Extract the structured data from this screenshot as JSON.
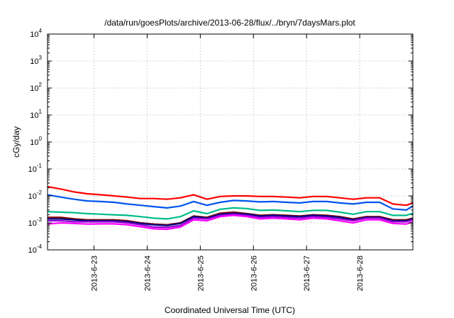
{
  "chart_data": {
    "type": "line",
    "title": "/data/run/goesPlots/archive/2013-06-28/flux/../bryn/7daysMars.plot",
    "xlabel": "Coordinated Universal Time (UTC)",
    "ylabel": "cGy/day",
    "yscale": "log",
    "ylim": [
      0.0001,
      10000
    ],
    "y_ticks": [
      {
        "base": "10",
        "exp": "-4"
      },
      {
        "base": "10",
        "exp": "-3"
      },
      {
        "base": "10",
        "exp": "-2"
      },
      {
        "base": "10",
        "exp": "-1"
      },
      {
        "base": "10",
        "exp": "0"
      },
      {
        "base": "10",
        "exp": "1"
      },
      {
        "base": "10",
        "exp": "2"
      },
      {
        "base": "10",
        "exp": "3"
      },
      {
        "base": "10",
        "exp": "4"
      }
    ],
    "xlim": [
      "2013-06-22 03:00",
      "2013-06-29 00:00"
    ],
    "x_ticks": [
      "2013-6-23",
      "2013-6-24",
      "2013-6-25",
      "2013-6-26",
      "2013-6-27",
      "2013-6-28"
    ],
    "grid": true,
    "legend": "none",
    "x": [
      "2013-06-22 03:00",
      "2013-06-22 09:00",
      "2013-06-22 15:00",
      "2013-06-22 21:00",
      "2013-06-23 03:00",
      "2013-06-23 09:00",
      "2013-06-23 15:00",
      "2013-06-23 21:00",
      "2013-06-24 03:00",
      "2013-06-24 09:00",
      "2013-06-24 15:00",
      "2013-06-24 21:00",
      "2013-06-25 03:00",
      "2013-06-25 09:00",
      "2013-06-25 15:00",
      "2013-06-25 21:00",
      "2013-06-26 03:00",
      "2013-06-26 09:00",
      "2013-06-26 15:00",
      "2013-06-26 21:00",
      "2013-06-27 03:00",
      "2013-06-27 09:00",
      "2013-06-27 15:00",
      "2013-06-27 21:00",
      "2013-06-28 03:00",
      "2013-06-28 09:00",
      "2013-06-28 15:00",
      "2013-06-28 21:00",
      "2013-06-29 00:00"
    ],
    "series": [
      {
        "color": "#ff0000",
        "values": [
          0.022,
          0.018,
          0.014,
          0.012,
          0.011,
          0.01,
          0.009,
          0.008,
          0.008,
          0.0075,
          0.0085,
          0.011,
          0.0075,
          0.0095,
          0.01,
          0.01,
          0.0095,
          0.0095,
          0.009,
          0.0085,
          0.0095,
          0.0095,
          0.0085,
          0.0075,
          0.0085,
          0.0085,
          0.005,
          0.0045,
          0.0055
        ]
      },
      {
        "color": "#0055ee",
        "values": [
          0.011,
          0.009,
          0.0075,
          0.0065,
          0.0062,
          0.0058,
          0.005,
          0.0045,
          0.004,
          0.0036,
          0.0042,
          0.0062,
          0.0045,
          0.0058,
          0.0068,
          0.0065,
          0.006,
          0.0062,
          0.0058,
          0.0055,
          0.0062,
          0.0062,
          0.0055,
          0.005,
          0.0058,
          0.0058,
          0.0033,
          0.003,
          0.0042
        ]
      },
      {
        "color": "#00bb88",
        "values": [
          0.0026,
          0.0025,
          0.0024,
          0.0022,
          0.0021,
          0.002,
          0.0019,
          0.0017,
          0.0015,
          0.0014,
          0.0017,
          0.0028,
          0.0022,
          0.0032,
          0.0036,
          0.0034,
          0.0029,
          0.003,
          0.0028,
          0.0026,
          0.0029,
          0.0029,
          0.0025,
          0.0021,
          0.0026,
          0.0026,
          0.0019,
          0.0019,
          0.0023
        ]
      },
      {
        "color": "#8b0000",
        "values": [
          0.0016,
          0.0016,
          0.0014,
          0.0013,
          0.0013,
          0.0013,
          0.0012,
          0.001,
          0.0009,
          0.00085,
          0.001,
          0.0018,
          0.0016,
          0.0023,
          0.0025,
          0.0022,
          0.0019,
          0.002,
          0.0019,
          0.0018,
          0.002,
          0.0019,
          0.0017,
          0.0014,
          0.0017,
          0.0017,
          0.0013,
          0.0013,
          0.0015
        ]
      },
      {
        "color": "#000080",
        "values": [
          0.0014,
          0.0014,
          0.0013,
          0.0012,
          0.0012,
          0.0012,
          0.0011,
          0.00095,
          0.00085,
          0.0008,
          0.00095,
          0.0017,
          0.0015,
          0.0021,
          0.0023,
          0.0021,
          0.0018,
          0.0019,
          0.0018,
          0.0017,
          0.0019,
          0.0018,
          0.0016,
          0.0013,
          0.0016,
          0.0016,
          0.0012,
          0.0012,
          0.0014
        ]
      },
      {
        "color": "#9400d3",
        "values": [
          0.0012,
          0.0012,
          0.0011,
          0.0011,
          0.0011,
          0.0011,
          0.001,
          0.00085,
          0.0007,
          0.00068,
          0.0008,
          0.0015,
          0.0014,
          0.0019,
          0.0021,
          0.0019,
          0.0016,
          0.0017,
          0.0016,
          0.0015,
          0.0017,
          0.0016,
          0.0014,
          0.0012,
          0.0015,
          0.0015,
          0.0011,
          0.0011,
          0.0013
        ]
      },
      {
        "color": "#ff00ff",
        "values": [
          0.0009,
          0.001,
          0.00095,
          0.0009,
          0.00092,
          0.00092,
          0.00085,
          0.00072,
          0.0006,
          0.00058,
          0.0007,
          0.0013,
          0.0012,
          0.0017,
          0.0019,
          0.0017,
          0.0014,
          0.0015,
          0.0014,
          0.0013,
          0.0015,
          0.0014,
          0.0012,
          0.001,
          0.0013,
          0.0013,
          0.00095,
          0.0009,
          0.0011
        ]
      }
    ]
  }
}
